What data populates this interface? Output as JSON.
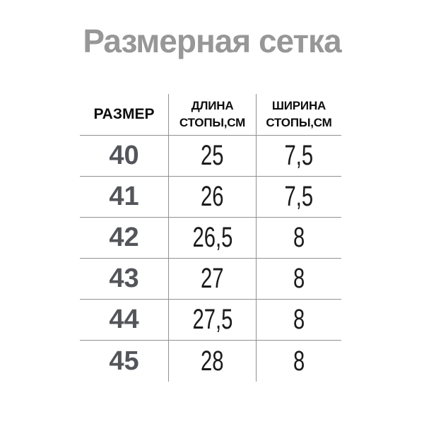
{
  "title": "Размерная сетка",
  "header": {
    "size": "РАЗМЕР",
    "length": [
      "ДЛИНА",
      "СТОПЫ,СМ"
    ],
    "width": [
      "ШИРИНА",
      "СТОПЫ,СМ"
    ]
  },
  "chart_data": {
    "type": "table",
    "title": "Размерная сетка",
    "columns": [
      "РАЗМЕР",
      "ДЛИНА СТОПЫ,СМ",
      "ШИРИНА СТОПЫ,СМ"
    ],
    "rows": [
      [
        "40",
        "25",
        "7,5"
      ],
      [
        "41",
        "26",
        "7,5"
      ],
      [
        "42",
        "26,5",
        "8"
      ],
      [
        "43",
        "27",
        "8"
      ],
      [
        "44",
        "27,5",
        "8"
      ],
      [
        "45",
        "28",
        "8"
      ]
    ]
  },
  "colors": {
    "background": "#ffffff",
    "title_text": "#979797",
    "header_text": "#0d0d0d",
    "size_number_text": "#53555a",
    "value_text": "#1b1b1b",
    "grid_line": "#919191"
  }
}
